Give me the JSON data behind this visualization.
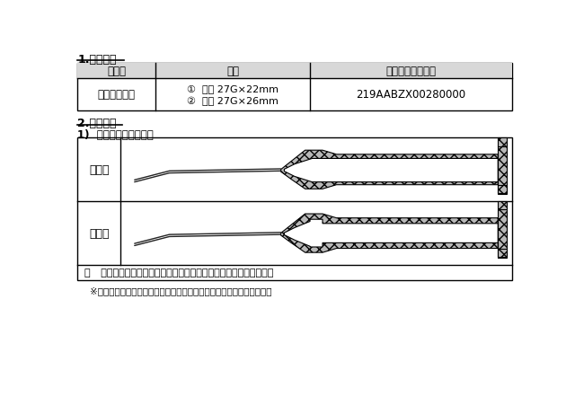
{
  "title_section1": "1.対象製品",
  "title_section2": "2.変更内容",
  "title_subsection": "1)  針基内部の形状変更",
  "table_headers": [
    "製品名",
    "品種",
    "医療機器認証番号"
  ],
  "table_row_col1": "トップ眼科針",
  "table_row_col2_line1": "①  曲針 27G×22mm",
  "table_row_col2_line2": "②  直針 27G×26mm",
  "table_row_col3": "219AABZX00280000",
  "label_new": "【新】",
  "label_old": "【旧】",
  "note_text": "・   針基内部の形状変更により、気泡混入のリスクを軽減しました。",
  "note_sub": "※イラストは「曲針」ですが、「直針」も同様の形状変更を行います。",
  "bg_color": "#ffffff",
  "text_color": "#000000",
  "hatch_fill": "#b0b0b0"
}
